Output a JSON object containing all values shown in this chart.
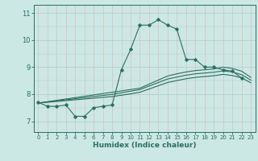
{
  "xlabel": "Humidex (Indice chaleur)",
  "bg_color": "#cce8e4",
  "line_color": "#2a6e62",
  "grid_color_h": "#aaccc8",
  "grid_color_v": "#e8b8b8",
  "xlim": [
    -0.5,
    23.5
  ],
  "ylim": [
    6.6,
    11.3
  ],
  "xticks": [
    0,
    1,
    2,
    3,
    4,
    5,
    6,
    7,
    8,
    9,
    10,
    11,
    12,
    13,
    14,
    15,
    16,
    17,
    18,
    19,
    20,
    21,
    22,
    23
  ],
  "yticks": [
    7,
    8,
    9,
    10,
    11
  ],
  "curve1_x": [
    0,
    1,
    2,
    3,
    4,
    5,
    6,
    7,
    8,
    9,
    10,
    11,
    12,
    13,
    14,
    15,
    16,
    17,
    18,
    19,
    20,
    21,
    22
  ],
  "curve1_y": [
    7.7,
    7.55,
    7.55,
    7.6,
    7.18,
    7.18,
    7.5,
    7.55,
    7.6,
    8.9,
    9.65,
    10.55,
    10.55,
    10.75,
    10.55,
    10.4,
    9.28,
    9.28,
    9.0,
    9.0,
    8.9,
    8.85,
    8.6
  ],
  "curve2_x": [
    0,
    1,
    2,
    3,
    4,
    5,
    6,
    7,
    8,
    9,
    10,
    11,
    12,
    13,
    14,
    15,
    16,
    17,
    18,
    19,
    20,
    21,
    22,
    23
  ],
  "curve2_y": [
    7.67,
    7.72,
    7.77,
    7.82,
    7.87,
    7.92,
    7.97,
    8.02,
    8.07,
    8.12,
    8.17,
    8.22,
    8.37,
    8.52,
    8.67,
    8.75,
    8.82,
    8.87,
    8.9,
    8.93,
    9.0,
    8.95,
    8.85,
    8.62
  ],
  "curve3_x": [
    0,
    1,
    2,
    3,
    4,
    5,
    6,
    7,
    8,
    9,
    10,
    11,
    12,
    13,
    14,
    15,
    16,
    17,
    18,
    19,
    20,
    21,
    22,
    23
  ],
  "curve3_y": [
    7.67,
    7.71,
    7.75,
    7.79,
    7.83,
    7.87,
    7.91,
    7.95,
    7.99,
    8.05,
    8.11,
    8.17,
    8.3,
    8.43,
    8.56,
    8.63,
    8.7,
    8.75,
    8.78,
    8.81,
    8.86,
    8.82,
    8.72,
    8.52
  ],
  "curve4_x": [
    0,
    1,
    2,
    3,
    4,
    5,
    6,
    7,
    8,
    9,
    10,
    11,
    12,
    13,
    14,
    15,
    16,
    17,
    18,
    19,
    20,
    21,
    22,
    23
  ],
  "curve4_y": [
    7.67,
    7.7,
    7.73,
    7.76,
    7.79,
    7.82,
    7.85,
    7.88,
    7.91,
    7.96,
    8.01,
    8.07,
    8.19,
    8.31,
    8.43,
    8.5,
    8.57,
    8.62,
    8.65,
    8.68,
    8.73,
    8.69,
    8.6,
    8.42
  ]
}
